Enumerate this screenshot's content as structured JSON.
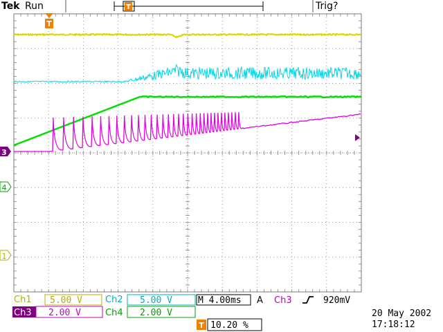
{
  "header": {
    "brand": "Tek",
    "acq_state": "Run",
    "trigger_status": "Trig?",
    "trigger_marker": "T"
  },
  "markers": {
    "ch3": "3",
    "ch4": "4",
    "ch1": "1"
  },
  "readouts": {
    "ch1": {
      "label": "Ch1",
      "scale": "5.00 V"
    },
    "ch2": {
      "label": "Ch2",
      "scale": "5.00 V"
    },
    "ch3": {
      "label": "Ch3",
      "scale": "2.00 V"
    },
    "ch4": {
      "label": "Ch4",
      "scale": "2.00 V"
    },
    "timebase": "M 4.00ms",
    "trigger": {
      "mode": "A",
      "source": "Ch3",
      "level": "920mV"
    },
    "trigger_position": "10.20 %",
    "date": "20 May 2002",
    "time": "17:18:12"
  },
  "colors": {
    "ch1": "#d8d800",
    "ch2": "#00d8e8",
    "ch3": "#e000e0",
    "ch4": "#00e000",
    "ch3_label_bg": "#800080",
    "trigger_marker": "#f08000",
    "grid": "#9a9a9a",
    "ch1_text": "#b0b000",
    "ch2_text": "#00b0b8",
    "ch4_text": "#00a000",
    "ch3_text": "#c000c0"
  }
}
